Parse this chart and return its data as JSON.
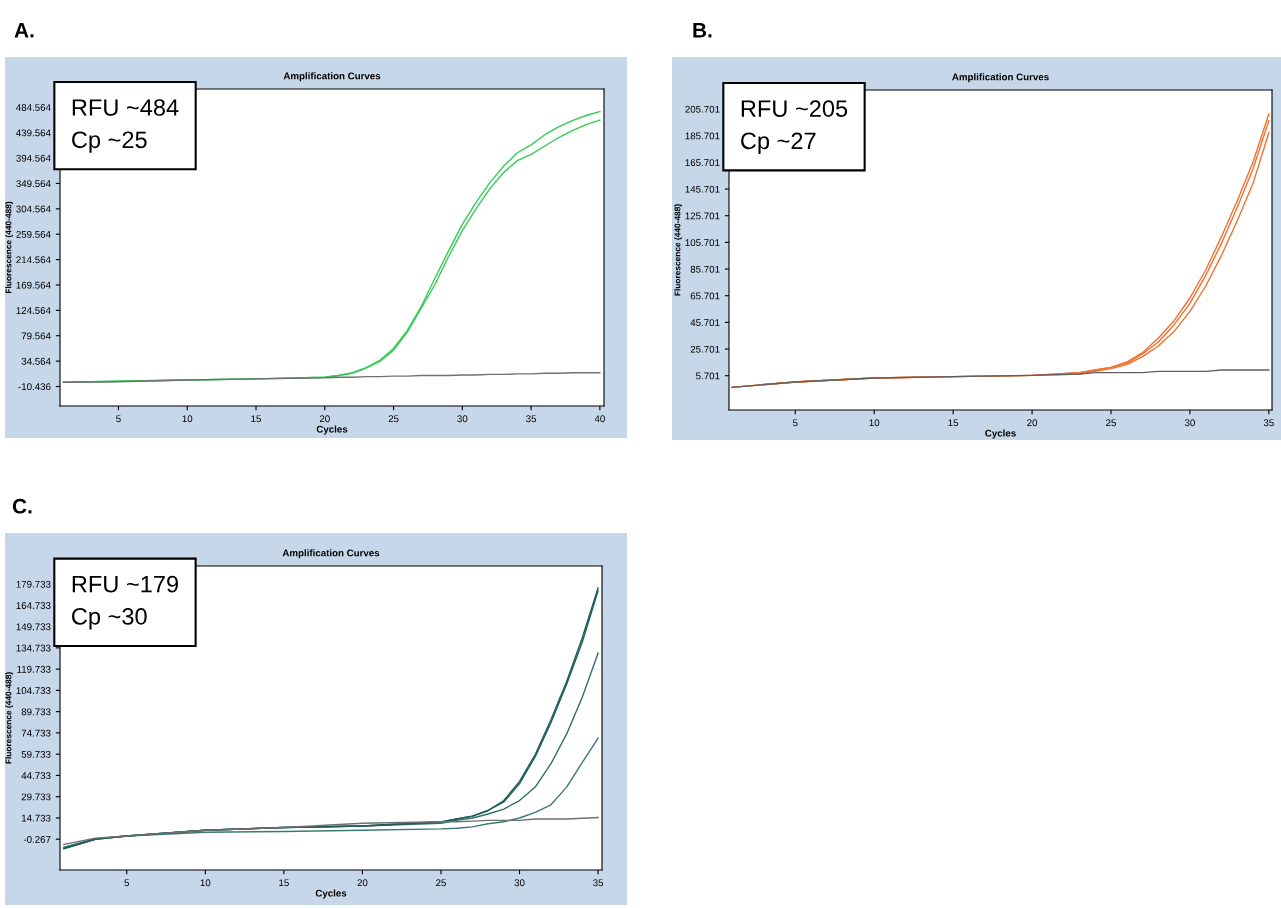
{
  "chart_data": [
    {
      "type": "line",
      "title": "Amplification Curves",
      "xlabel": "Cycles",
      "ylabel": "Fluorescence (440-488)",
      "annotations": [
        "A.",
        "RFU ~484",
        "Cp ~25"
      ],
      "x": [
        1,
        5,
        10,
        15,
        20,
        21,
        22,
        23,
        24,
        25,
        26,
        27,
        28,
        29,
        30,
        31,
        32,
        33,
        34,
        35,
        36,
        37,
        38,
        39,
        40
      ],
      "series": [
        {
          "color": "#707070",
          "values": [
            -3,
            -2,
            1,
            3,
            5,
            6,
            6,
            7,
            7,
            8,
            8,
            9,
            9,
            9,
            10,
            10,
            11,
            11,
            12,
            12,
            13,
            13,
            14,
            14,
            14
          ]
        },
        {
          "color": "#33cc55",
          "values": [
            -3,
            -1,
            1,
            3,
            6,
            9,
            14,
            23,
            36,
            57,
            89,
            131,
            181,
            230,
            277,
            316,
            351,
            380,
            404,
            418,
            436,
            450,
            461,
            470,
            477
          ]
        },
        {
          "color": "#33cc55",
          "values": [
            -3,
            -1,
            1,
            3,
            6,
            9,
            13,
            22,
            34,
            54,
            86,
            128,
            170,
            220,
            266,
            305,
            340,
            369,
            390,
            401,
            416,
            431,
            443,
            454,
            462
          ]
        }
      ],
      "xlim": [
        0.75,
        40.3
      ],
      "ylim": [
        -45,
        517
      ],
      "xticks": [
        5,
        10,
        15,
        20,
        25,
        30,
        35,
        40
      ],
      "yticks": [
        -10.436,
        34.564,
        79.564,
        124.564,
        169.564,
        214.564,
        259.564,
        304.564,
        349.564,
        394.564,
        439.564,
        484.564
      ],
      "grid": false,
      "legend": false
    },
    {
      "type": "line",
      "title": "Amplification Curves",
      "xlabel": "Cycles",
      "ylabel": "Fluorescence (440-488)",
      "annotations": [
        "B.",
        "RFU ~205",
        "Cp ~27"
      ],
      "x": [
        1,
        5,
        10,
        15,
        20,
        23,
        24,
        25,
        26,
        27,
        28,
        29,
        30,
        31,
        32,
        33,
        34,
        35
      ],
      "series": [
        {
          "color": "#606060",
          "values": [
            -3,
            1,
            4,
            5,
            6,
            7,
            8,
            8,
            8,
            8,
            9,
            9,
            9,
            9,
            10,
            10,
            10,
            10
          ]
        },
        {
          "color": "#f07030",
          "values": [
            -3,
            1,
            4,
            5,
            6,
            8,
            10,
            12,
            16,
            23,
            34,
            47,
            64,
            85,
            110,
            137,
            166,
            202
          ]
        },
        {
          "color": "#f07030",
          "values": [
            -3,
            1,
            4,
            5,
            6,
            8,
            10,
            12,
            15,
            22,
            31,
            44,
            60,
            81,
            105,
            132,
            161,
            197
          ]
        },
        {
          "color": "#f07030",
          "values": [
            -3,
            1,
            4,
            5,
            6,
            7,
            9,
            11,
            14,
            20,
            28,
            39,
            54,
            73,
            96,
            122,
            150,
            188
          ]
        }
      ],
      "xlim": [
        0.8,
        35.2
      ],
      "ylim": [
        -20,
        220
      ],
      "xticks": [
        5,
        10,
        15,
        20,
        25,
        30,
        35
      ],
      "yticks": [
        5.701,
        25.701,
        45.701,
        65.701,
        85.701,
        105.701,
        125.701,
        145.701,
        165.701,
        185.701,
        205.701
      ],
      "grid": false,
      "legend": false
    },
    {
      "type": "line",
      "title": "Amplification Curves",
      "xlabel": "Cycles",
      "ylabel": "Fluorescence (440-488)",
      "annotations": [
        "C.",
        "RFU ~179",
        "Cp ~30"
      ],
      "x": [
        1,
        3,
        5,
        10,
        15,
        20,
        25,
        26,
        27,
        28,
        29,
        30,
        31,
        32,
        33,
        34,
        35
      ],
      "series": [
        {
          "color": "#707070",
          "values": [
            -4,
            0.5,
            2,
            6,
            8,
            11,
            12,
            12,
            12.5,
            13,
            13,
            13,
            14,
            14,
            14,
            14.5,
            15
          ]
        },
        {
          "color": "#1f5c5c",
          "values": [
            -7,
            -0.3,
            2,
            6,
            8,
            9,
            12,
            14,
            16,
            20,
            27,
            40.5,
            59.5,
            84,
            111,
            142,
            177
          ]
        },
        {
          "color": "#1f5c5c",
          "values": [
            -7,
            -0.3,
            2,
            6,
            8,
            9,
            12,
            14,
            16,
            20,
            26,
            39,
            58,
            82,
            109,
            139,
            175
          ]
        },
        {
          "color": "#2f6e6a",
          "values": [
            -6,
            0,
            2,
            6,
            8,
            9,
            11,
            13,
            14.7,
            17.5,
            21,
            27,
            36.5,
            53,
            74,
            100,
            131
          ]
        },
        {
          "color": "#3a7a72",
          "values": [
            -6,
            0,
            2,
            4.6,
            5.2,
            6,
            7,
            7.5,
            8.4,
            10.6,
            12,
            14.7,
            18.7,
            24,
            36.5,
            54,
            71
          ]
        }
      ],
      "xlim": [
        0.75,
        35.25
      ],
      "ylim": [
        -22,
        192.5
      ],
      "xticks": [
        5,
        10,
        15,
        20,
        25,
        30,
        35
      ],
      "yticks": [
        -0.267,
        14.733,
        29.733,
        44.733,
        59.733,
        74.733,
        89.733,
        104.733,
        119.733,
        134.733,
        149.733,
        164.733,
        179.733
      ],
      "grid": false,
      "legend": false
    }
  ]
}
